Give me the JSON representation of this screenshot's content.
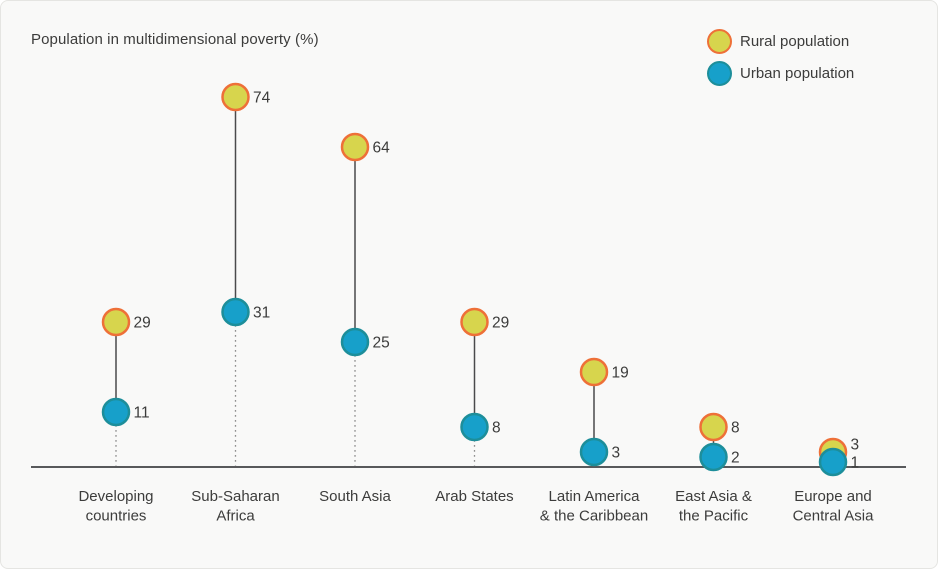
{
  "title": "Population in multidimensional poverty (%)",
  "legend": [
    {
      "label": "Rural population",
      "series": "rural"
    },
    {
      "label": "Urban population",
      "series": "urban"
    }
  ],
  "colors": {
    "rural_fill": "#d7d54d",
    "rural_stroke": "#ee7038",
    "urban_fill": "#17a0ca",
    "urban_stroke": "#1d8e9a",
    "connector": "#4a4a4c",
    "dotted": "#8f8f8f",
    "axis": "#58595b",
    "text": "#3c3c3b",
    "background": "#f9f9f8",
    "border": "#e5e5e2"
  },
  "chart_data": {
    "type": "scatter",
    "variant": "lollipop-dumbbell",
    "title": "Population in multidimensional poverty (%)",
    "categories": [
      "Developing countries",
      "Sub-Saharan Africa",
      "South Asia",
      "Arab States",
      "Latin America & the Caribbean",
      "East Asia & the Pacific",
      "Europe and Central Asia"
    ],
    "category_lines": [
      [
        "Developing",
        "countries"
      ],
      [
        "Sub-Saharan",
        "Africa"
      ],
      [
        "South Asia"
      ],
      [
        "Arab States"
      ],
      [
        "Latin America",
        "& the Caribbean"
      ],
      [
        "East Asia &",
        "the Pacific"
      ],
      [
        "Europe and",
        "Central Asia"
      ]
    ],
    "series": [
      {
        "name": "Rural population",
        "values": [
          29,
          74,
          64,
          29,
          19,
          8,
          3
        ]
      },
      {
        "name": "Urban population",
        "values": [
          11,
          31,
          25,
          8,
          3,
          2,
          1
        ]
      }
    ],
    "ylabel": "",
    "ylim": [
      0,
      80
    ],
    "grid": false,
    "legend_position": "top-right"
  }
}
